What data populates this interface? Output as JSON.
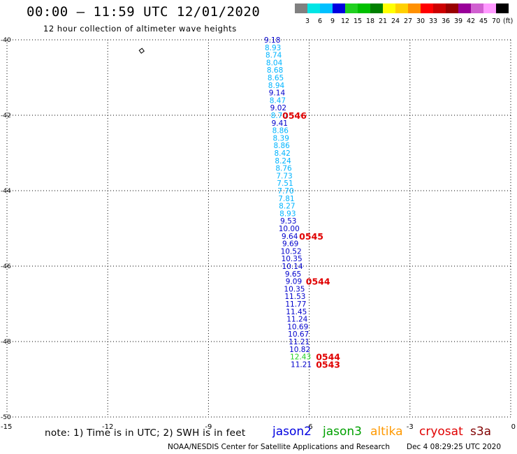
{
  "header": {
    "title": "00:00 – 11:59 UTC 12/01/2020",
    "subtitle": "12 hour collection of altimeter wave heights"
  },
  "color_scale": {
    "labels": [
      "3",
      "6",
      "9",
      "12",
      "15",
      "18",
      "21",
      "24",
      "27",
      "30",
      "33",
      "36",
      "39",
      "42",
      "45",
      "70"
    ],
    "unit": "(ft)",
    "colors": [
      "#808080",
      "#00e5e5",
      "#00c0ff",
      "#0000e0",
      "#20d020",
      "#00c000",
      "#008000",
      "#ffff00",
      "#ffd000",
      "#ff9000",
      "#ff0000",
      "#cc0000",
      "#990000",
      "#990099",
      "#d060d0",
      "#ff99ff",
      "#000000"
    ]
  },
  "note": "note:  1) Time is in UTC; 2) SWH is in feet",
  "legend": [
    {
      "name": "jason2",
      "color": "#0000e0"
    },
    {
      "name": "jason3",
      "color": "#00a000"
    },
    {
      "name": "altika",
      "color": "#ff9900"
    },
    {
      "name": "cryosat",
      "color": "#e00000"
    },
    {
      "name": "s3a",
      "color": "#800000"
    }
  ],
  "footer": {
    "credit": "NOAA/NESDIS Center for Satellite Applications and Research",
    "timestamp": "Dec  4 08:29:25 UTC 2020"
  },
  "chart_data": {
    "type": "scatter",
    "title": "00:00 – 11:59 UTC 12/01/2020",
    "subtitle": "12 hour collection of altimeter wave heights",
    "xlim": [
      -15,
      0
    ],
    "ylim": [
      -50,
      -40
    ],
    "x_ticks": [
      "-15",
      "-12",
      "-9",
      "-6",
      "-3",
      "0"
    ],
    "x_tick_values": [
      -15,
      -12,
      -9,
      -6,
      -3,
      0
    ],
    "y_ticks": [
      "-40",
      "-42",
      "-44",
      "-46",
      "-48",
      "-50"
    ],
    "y_tick_values": [
      -40,
      -42,
      -44,
      -46,
      -48,
      -50
    ],
    "grid": true,
    "series": [
      {
        "name": "jason2",
        "points": [
          {
            "lon": -7.1,
            "lat": -40.0,
            "swh": "9.18",
            "color": "#0000cc"
          },
          {
            "lon": -7.08,
            "lat": -40.2,
            "swh": "8.93",
            "color": "#00b4ff"
          },
          {
            "lon": -7.06,
            "lat": -40.4,
            "swh": "8.74",
            "color": "#00b4ff"
          },
          {
            "lon": -7.04,
            "lat": -40.6,
            "swh": "8.04",
            "color": "#00b4ff"
          },
          {
            "lon": -7.02,
            "lat": -40.8,
            "swh": "8.68",
            "color": "#00b4ff"
          },
          {
            "lon": -7.0,
            "lat": -41.0,
            "swh": "8.65",
            "color": "#00b4ff"
          },
          {
            "lon": -6.98,
            "lat": -41.2,
            "swh": "8.94",
            "color": "#00b4ff"
          },
          {
            "lon": -6.96,
            "lat": -41.4,
            "swh": "9.14",
            "color": "#0000cc"
          },
          {
            "lon": -6.94,
            "lat": -41.6,
            "swh": "8.47",
            "color": "#00b4ff"
          },
          {
            "lon": -6.92,
            "lat": -41.8,
            "swh": "9.02",
            "color": "#0000cc"
          },
          {
            "lon": -6.9,
            "lat": -42.0,
            "swh": "8.70",
            "color": "#00b4ff"
          },
          {
            "lon": -6.88,
            "lat": -42.2,
            "swh": "9.41",
            "color": "#0000cc"
          },
          {
            "lon": -6.86,
            "lat": -42.4,
            "swh": "8.86",
            "color": "#00b4ff"
          },
          {
            "lon": -6.84,
            "lat": -42.6,
            "swh": "8.39",
            "color": "#00b4ff"
          },
          {
            "lon": -6.82,
            "lat": -42.8,
            "swh": "8.86",
            "color": "#00b4ff"
          },
          {
            "lon": -6.8,
            "lat": -43.0,
            "swh": "8.42",
            "color": "#00b4ff"
          },
          {
            "lon": -6.78,
            "lat": -43.2,
            "swh": "8.24",
            "color": "#00b4ff"
          },
          {
            "lon": -6.76,
            "lat": -43.4,
            "swh": "8.76",
            "color": "#00b4ff"
          },
          {
            "lon": -6.74,
            "lat": -43.6,
            "swh": "7.73",
            "color": "#00b4ff"
          },
          {
            "lon": -6.72,
            "lat": -43.8,
            "swh": "7.51",
            "color": "#00b4ff"
          },
          {
            "lon": -6.7,
            "lat": -44.0,
            "swh": "7.70",
            "color": "#00b4ff"
          },
          {
            "lon": -6.68,
            "lat": -44.2,
            "swh": "7.81",
            "color": "#00b4ff"
          },
          {
            "lon": -6.66,
            "lat": -44.4,
            "swh": "8.27",
            "color": "#00b4ff"
          },
          {
            "lon": -6.64,
            "lat": -44.6,
            "swh": "8.93",
            "color": "#00b4ff"
          },
          {
            "lon": -6.62,
            "lat": -44.8,
            "swh": "9.53",
            "color": "#0000cc"
          },
          {
            "lon": -6.6,
            "lat": -45.0,
            "swh": "10.00",
            "color": "#0000cc"
          },
          {
            "lon": -6.58,
            "lat": -45.2,
            "swh": "9.64",
            "color": "#0000cc"
          },
          {
            "lon": -6.56,
            "lat": -45.4,
            "swh": "9.69",
            "color": "#0000cc"
          },
          {
            "lon": -6.54,
            "lat": -45.6,
            "swh": "10.52",
            "color": "#0000cc"
          },
          {
            "lon": -6.52,
            "lat": -45.8,
            "swh": "10.35",
            "color": "#0000cc"
          },
          {
            "lon": -6.5,
            "lat": -46.0,
            "swh": "10.14",
            "color": "#0000cc"
          },
          {
            "lon": -6.48,
            "lat": -46.2,
            "swh": "9.65",
            "color": "#0000cc"
          },
          {
            "lon": -6.46,
            "lat": -46.4,
            "swh": "9.09",
            "color": "#0000cc"
          },
          {
            "lon": -6.44,
            "lat": -46.6,
            "swh": "10.35",
            "color": "#0000cc"
          },
          {
            "lon": -6.42,
            "lat": -46.8,
            "swh": "11.53",
            "color": "#0000cc"
          },
          {
            "lon": -6.4,
            "lat": -47.0,
            "swh": "11.77",
            "color": "#0000cc"
          },
          {
            "lon": -6.38,
            "lat": -47.2,
            "swh": "11.45",
            "color": "#0000cc"
          },
          {
            "lon": -6.36,
            "lat": -47.4,
            "swh": "11.24",
            "color": "#0000cc"
          },
          {
            "lon": -6.34,
            "lat": -47.6,
            "swh": "10.69",
            "color": "#0000cc"
          },
          {
            "lon": -6.32,
            "lat": -47.8,
            "swh": "10.67",
            "color": "#0000cc"
          },
          {
            "lon": -6.3,
            "lat": -48.0,
            "swh": "11.21",
            "color": "#0000cc"
          },
          {
            "lon": -6.28,
            "lat": -48.2,
            "swh": "10.82",
            "color": "#0000cc"
          },
          {
            "lon": -6.26,
            "lat": -48.4,
            "swh": "12.43",
            "color": "#20d020"
          },
          {
            "lon": -6.24,
            "lat": -48.6,
            "swh": "11.21",
            "color": "#0000cc"
          }
        ]
      }
    ],
    "time_labels": [
      {
        "text": "0546",
        "lon": -6.8,
        "lat": -42.0
      },
      {
        "text": "0545",
        "lon": -6.3,
        "lat": -45.2
      },
      {
        "text": "0544",
        "lon": -6.1,
        "lat": -46.4
      },
      {
        "text": "0544",
        "lon": -5.8,
        "lat": -48.4
      },
      {
        "text": "0543",
        "lon": -5.8,
        "lat": -48.6
      }
    ],
    "coastline_fragments": [
      {
        "name": "small-island",
        "lon": -11.0,
        "lat": -40.3
      }
    ]
  }
}
